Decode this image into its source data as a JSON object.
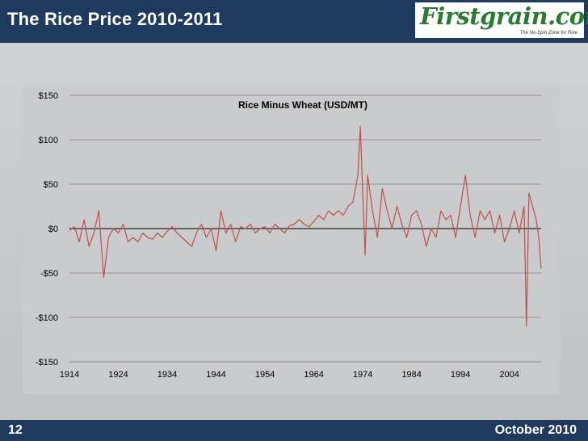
{
  "header": {
    "title": "The Rice Price 2010-2011"
  },
  "logo": {
    "name": "Firstgrain.com",
    "tagline": "The No-Spin Zone for Rice"
  },
  "footer": {
    "slide_number": "12",
    "date": "October 2010"
  },
  "colors": {
    "bar": "#1f3a5c",
    "line": "#c0504d",
    "grid": "#7f7f7f"
  },
  "chart_data": {
    "type": "line",
    "title": "Rice Minus Wheat (USD/MT)",
    "xlabel": "",
    "ylabel": "",
    "ylim": [
      -150,
      150
    ],
    "xlim": [
      1914,
      2010.5
    ],
    "y_ticks": [
      150,
      100,
      50,
      0,
      -50,
      -100,
      -150
    ],
    "y_tick_labels": [
      "$150",
      "$100",
      "$50",
      "$0",
      "-$50",
      "-$100",
      "-$150"
    ],
    "x_ticks": [
      1914,
      1924,
      1934,
      1944,
      1954,
      1964,
      1974,
      1984,
      1994,
      2004
    ],
    "x_tick_labels": [
      "1914",
      "1924",
      "1934",
      "1944",
      "1954",
      "1964",
      "1974",
      "1984",
      "1994",
      "2004"
    ],
    "grid": true,
    "series": [
      {
        "x": [
          1914,
          1915,
          1916,
          1917,
          1918,
          1919,
          1920,
          1921,
          1922,
          1923,
          1924,
          1925,
          1926,
          1927,
          1928,
          1929,
          1930,
          1931,
          1932,
          1933,
          1934,
          1935,
          1936,
          1937,
          1938,
          1939,
          1940,
          1941,
          1942,
          1943,
          1944,
          1945,
          1946,
          1947,
          1948,
          1949,
          1950,
          1951,
          1952,
          1953,
          1954,
          1955,
          1956,
          1957,
          1958,
          1959,
          1960,
          1961,
          1962,
          1963,
          1964,
          1965,
          1966,
          1967,
          1968,
          1969,
          1970,
          1971,
          1972,
          1973,
          1973.5,
          1974,
          1974.5,
          1975,
          1976,
          1977,
          1978,
          1979,
          1980,
          1981,
          1982,
          1983,
          1984,
          1985,
          1986,
          1987,
          1988,
          1989,
          1990,
          1991,
          1992,
          1993,
          1994,
          1995,
          1996,
          1997,
          1998,
          1999,
          2000,
          2001,
          2002,
          2003,
          2004,
          2005,
          2006,
          2007,
          2007.5,
          2008,
          2008.5,
          2009,
          2009.5,
          2010,
          2010.5
        ],
        "y": [
          -2,
          2,
          -15,
          10,
          -20,
          -5,
          20,
          -55,
          -10,
          0,
          -5,
          5,
          -15,
          -10,
          -15,
          -5,
          -10,
          -12,
          -5,
          -10,
          -3,
          2,
          -5,
          -10,
          -15,
          -20,
          -5,
          5,
          -10,
          0,
          -25,
          20,
          -5,
          5,
          -15,
          2,
          0,
          5,
          -5,
          0,
          2,
          -5,
          5,
          0,
          -5,
          3,
          5,
          10,
          5,
          2,
          8,
          15,
          10,
          20,
          15,
          20,
          15,
          25,
          30,
          60,
          115,
          40,
          -30,
          60,
          20,
          -10,
          45,
          20,
          0,
          25,
          5,
          -10,
          15,
          20,
          5,
          -20,
          0,
          -10,
          20,
          10,
          15,
          -10,
          25,
          60,
          15,
          -10,
          20,
          10,
          20,
          -5,
          15,
          -15,
          0,
          20,
          -5,
          25,
          -110,
          40,
          30,
          20,
          10,
          -10,
          -45
        ]
      }
    ]
  }
}
